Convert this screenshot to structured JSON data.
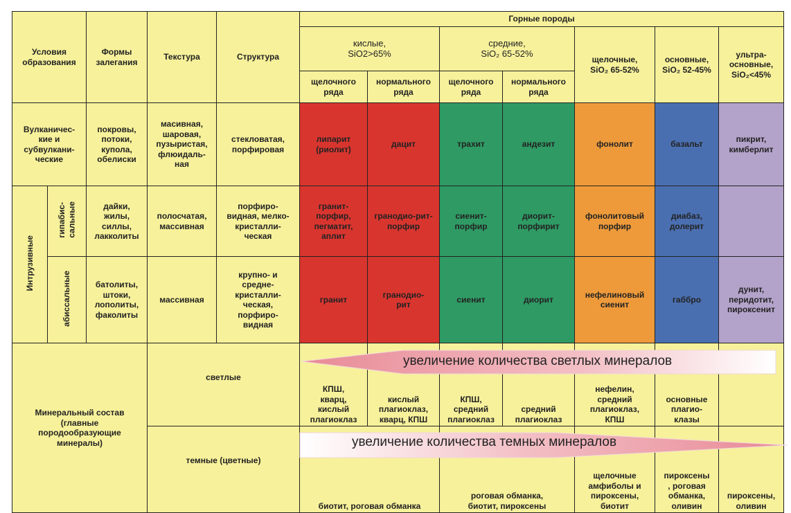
{
  "header": {
    "conditions": "Условия образования",
    "forms": "Формы залегания",
    "texture": "Текстура",
    "structure": "Структура",
    "rocks": "Горные породы",
    "acid": "кислые,\nSiO2>65%",
    "intermediate": "средние,\nSiO₂ 65-52%",
    "alkaline": "щелочные,\nSiO₂ 65-52%",
    "basic": "основные,\nSiO₂ 52-45%",
    "ultrabasic": "ультра-\nосновные,\nSiO₂<45%",
    "sub": [
      "щелочного ряда",
      "нормального ряда",
      "щелочного ряда",
      "нормального ряда"
    ]
  },
  "volcanic": {
    "condition": "Вулканичес-\nкие и\nсубвулкани-\nческие",
    "forms": "покровы,\nпотоки,\nкупола,\nобелиски",
    "texture": "масивная,\nшаровая,\nпузыристая,\nфлюидаль-\nная",
    "structure": "стекловатая,\nпорфировая",
    "rocks": [
      "липарит\n(риолит)",
      "дацит",
      "трахит",
      "андезит",
      "фонолит",
      "базальт",
      "пикрит,\nкимберлит"
    ]
  },
  "intrusive": {
    "label": "Интрузивные",
    "hypabyssal": {
      "condition": "гипабис-\nсальные",
      "forms": "дайки,\nжилы,\nсиллы,\nлакколиты",
      "texture": "полосчатая,\nмассивная",
      "structure": "порфиро-\nвидная, мелко-\nкристалли-\nческая",
      "rocks": [
        "гранит-\nпорфир,\nпегматит,\nаплит",
        "гранодио-рит-\nпорфир",
        "сиенит-\nпорфир",
        "диорит-\nпорфирит",
        "фонолитовый\nпорфир",
        "диабаз,\nдолерит",
        ""
      ]
    },
    "abyssal": {
      "condition": "абиссальные",
      "forms": "батолиты,\nштоки,\nлополиты,\nфаколиты",
      "texture": "массивная",
      "structure": "крупно- и\nсредне-\nкристалли-\nческая,\nпорфиро-\nвидная",
      "rocks": [
        "гранит",
        "гранодио-\nрит",
        "сиенит",
        "диорит",
        "нефелиновый\nсиенит",
        "габбро",
        "дунит,\nперидотит,\nпироксенит"
      ]
    }
  },
  "minerals": {
    "label": "Минеральный состав\n(главные\nпородообразующие\nминералы)",
    "light_label": "светлые",
    "light_arrow": "увеличение количества светлых минералов",
    "light": [
      "КПШ,\nкварц,\nкислый\nплагиоклаз",
      "кислый\nплагиоклаз,\nкварц,    КПШ",
      "КПШ,\nсредний\nплагиоклаз",
      "средний\nплагиоклаз",
      "нефелин,\nсредний\nплагиоклаз,\nКПШ",
      "основные\nплагио-\nклазы",
      ""
    ],
    "dark_label": "темные (цветные)",
    "dark_arrow": "увеличение количества темных минералов",
    "dark": [
      "биотит, роговая обманка",
      "роговая обманка,\nбиотит, пироксены",
      "щелочные\nамфиболы и\nпироксены,\nбиотит",
      "пироксены\n, роговая\nобманка,\nоливин",
      "пироксены,\nоливин"
    ]
  },
  "colors": {
    "cell": "#f7f19b",
    "acid": "#d9352f",
    "intermediate": "#2f9a64",
    "alkaline": "#ee9a3b",
    "basic": "#4a6fb0",
    "ultrabasic": "#b3a3ca"
  }
}
